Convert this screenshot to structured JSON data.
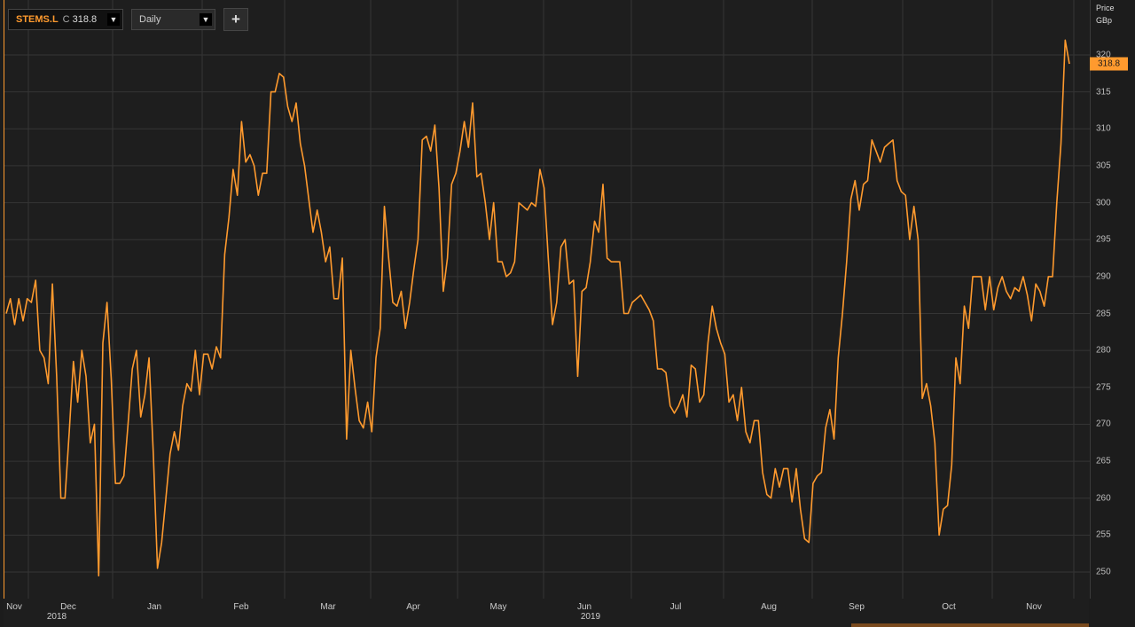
{
  "toolbar": {
    "ric": "STEMS.L",
    "close_prefix": "C",
    "close_value": "318.8",
    "interval": "Daily",
    "add_label": "+"
  },
  "axis": {
    "price_title": "Price",
    "currency_title": "GBp",
    "last_price": "318.8",
    "y_ticks": [
      "320",
      "315",
      "310",
      "305",
      "300",
      "295",
      "290",
      "285",
      "280",
      "275",
      "270",
      "265",
      "260",
      "255",
      "250"
    ],
    "x_month_labels": [
      "Nov",
      "Dec",
      "Jan",
      "Feb",
      "Mar",
      "Apr",
      "May",
      "Jun",
      "Jul",
      "Aug",
      "Sep",
      "Oct",
      "Nov"
    ],
    "x_year_labels": [
      "2018",
      "2019"
    ]
  },
  "colors": {
    "line": "#ff9a2e",
    "background": "#1e1e1e",
    "grid": "#353535"
  },
  "chart_data": {
    "type": "line",
    "ylim": [
      245,
      323
    ],
    "series": [
      {
        "values": [
          285.0,
          287.0,
          283.5,
          287.0,
          284.0,
          287.0,
          286.5,
          289.5,
          280.0,
          279.0,
          275.5,
          289.0,
          276.5,
          260.0,
          260.0,
          269.0,
          278.5,
          273.0,
          280.0,
          276.5,
          267.5,
          270.0,
          249.5,
          281.0,
          286.5,
          276.0,
          262.0,
          262.0,
          263.0,
          270.0,
          277.5,
          280.0,
          271.0,
          274.0,
          279.0,
          266.0,
          250.5,
          254.0,
          260.0,
          266.0,
          269.0,
          266.5,
          272.5,
          275.5,
          274.5,
          280.0,
          274.0,
          279.5,
          279.5,
          277.5,
          280.5,
          279.0,
          293.0,
          298.0,
          304.5,
          301.0,
          311.0,
          305.5,
          306.5,
          305.0,
          301.0,
          304.0,
          304.0,
          315.0,
          315.0,
          317.5,
          317.0,
          313.0,
          311.0,
          313.5,
          308.0,
          305.0,
          300.5,
          296.0,
          299.0,
          296.0,
          292.0,
          294.0,
          287.0,
          287.0,
          292.5,
          268.0,
          280.0,
          275.0,
          270.5,
          269.5,
          273.0,
          269.0,
          279.0,
          283.0,
          299.5,
          292.5,
          286.5,
          286.0,
          288.0,
          283.0,
          286.5,
          291.0,
          295.0,
          308.5,
          309.0,
          307.0,
          310.5,
          302.0,
          288.0,
          292.5,
          302.5,
          304.0,
          307.0,
          311.0,
          307.5,
          313.5,
          303.5,
          304.0,
          300.0,
          295.0,
          300.0,
          292.0,
          292.0,
          290.0,
          290.5,
          292.0,
          300.0,
          299.5,
          299.0,
          300.0,
          299.5,
          304.5,
          302.0,
          292.5,
          283.5,
          286.5,
          294.0,
          295.0,
          289.0,
          289.5,
          276.5,
          288.0,
          288.5,
          292.0,
          297.5,
          296.0,
          302.5,
          292.5,
          292.0,
          292.0,
          292.0,
          285.0,
          285.0,
          286.5,
          287.0,
          287.5,
          286.5,
          285.5,
          284.0,
          277.5,
          277.5,
          277.0,
          272.5,
          271.5,
          272.5,
          274.0,
          271.0,
          278.0,
          277.5,
          273.0,
          274.0,
          281.0,
          286.0,
          283.0,
          281.0,
          279.5,
          273.0,
          274.0,
          270.5,
          275.0,
          269.0,
          267.5,
          270.5,
          270.5,
          263.5,
          260.5,
          260.0,
          264.0,
          261.5,
          264.0,
          264.0,
          259.5,
          264.0,
          258.5,
          254.5,
          254.0,
          262.0,
          263.0,
          263.5,
          269.5,
          272.0,
          268.0,
          279.0,
          285.0,
          292.0,
          300.5,
          303.0,
          299.0,
          302.5,
          303.0,
          308.5,
          307.0,
          305.5,
          307.5,
          308.0,
          308.5,
          303.0,
          301.5,
          301.0,
          295.0,
          299.5,
          295.0,
          273.5,
          275.5,
          272.5,
          267.5,
          255.0,
          258.5,
          259.0,
          264.5,
          279.0,
          275.5,
          286.0,
          283.0,
          290.0,
          290.0,
          290.0,
          285.5,
          290.0,
          285.5,
          288.5,
          290.0,
          288.0,
          287.0,
          288.5,
          288.0,
          290.0,
          287.5,
          284.0,
          289.0,
          288.0,
          286.0,
          290.0,
          290.0,
          300.0,
          308.0,
          322.0,
          318.8
        ]
      }
    ]
  }
}
